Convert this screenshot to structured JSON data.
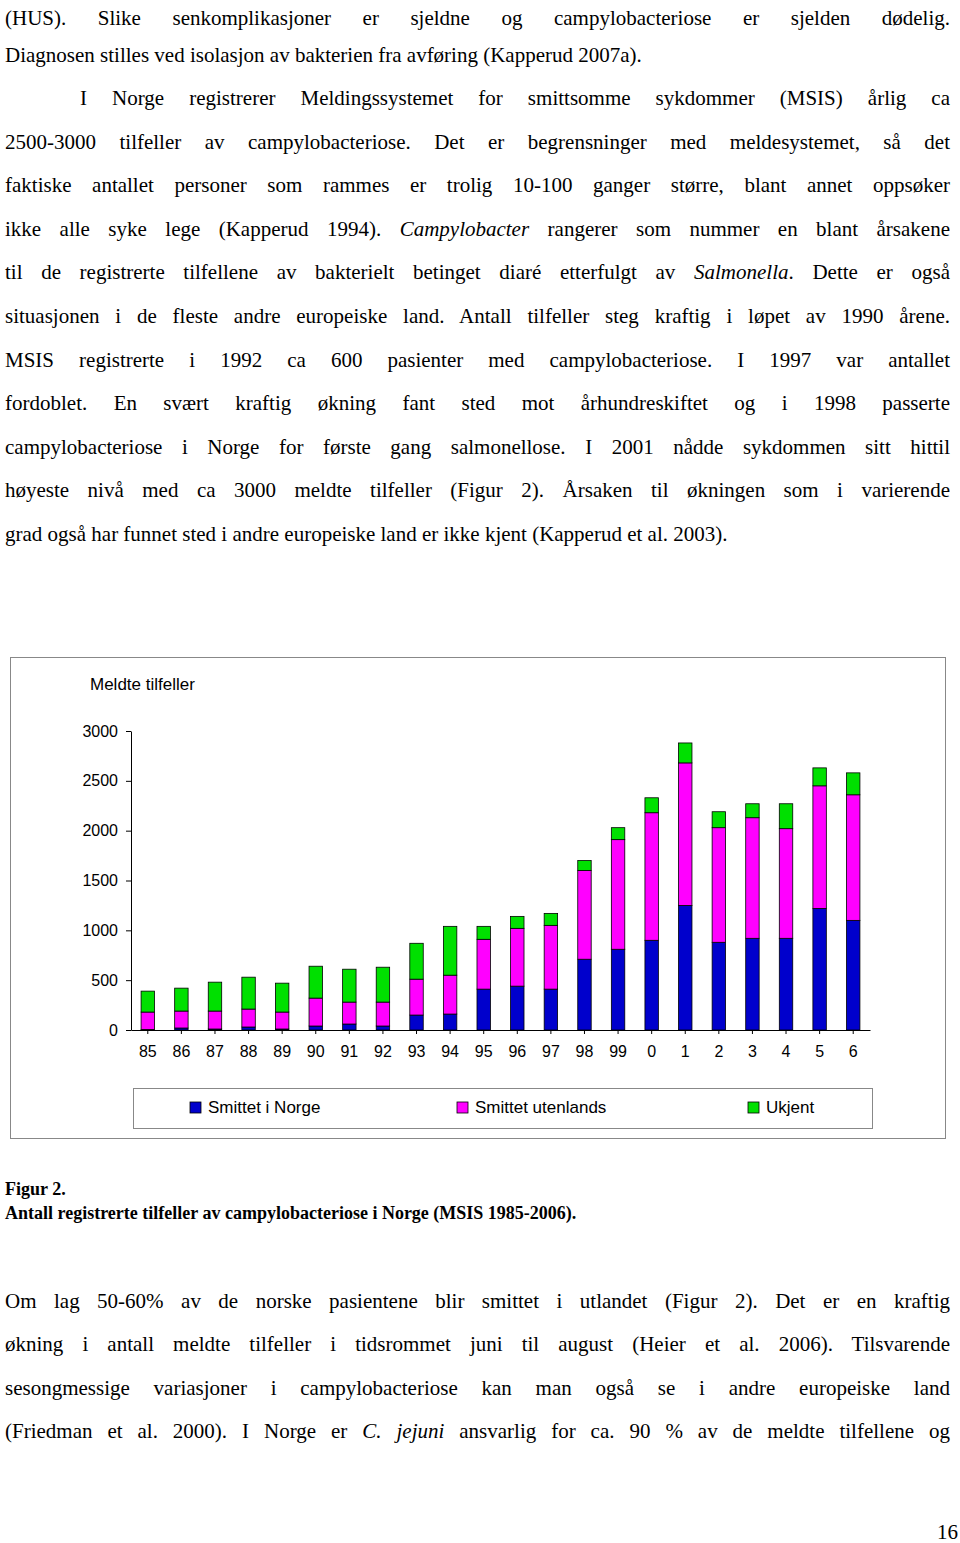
{
  "document": {
    "top": [
      {
        "lines": [
          [
            {
              "text": "(HUS). Slike senkomplikasjoner er sjeldne og campylobacteriose er sjelden dødelig."
            }
          ],
          [
            {
              "text": "Diagnosen stilles ved isolasjon av bakterien fra avføring (Kapperud 2007a)."
            }
          ]
        ]
      },
      {
        "lines": [
          [
            {
              "text": "I Norge registrerer Meldingssystemet for smittsomme sykdommer (MSIS) årlig ca"
            }
          ],
          [
            {
              "text": "2500-3000 tilfeller av campylobacteriose. Det er begrensninger med meldesystemet, så det"
            }
          ],
          [
            {
              "text": "faktiske antallet personer som rammes er trolig 10-100 ganger større, blant annet oppsøker"
            }
          ],
          [
            {
              "text": "ikke alle syke lege (Kapperud 1994). "
            },
            {
              "text": "Campylobacter",
              "italic": true
            },
            {
              "text": " rangerer som nummer en blant årsakene"
            }
          ],
          [
            {
              "text": "til de registrerte tilfellene av bakterielt betinget diaré etterfulgt av "
            },
            {
              "text": "Salmonella",
              "italic": true
            },
            {
              "text": ". Dette er også"
            }
          ],
          [
            {
              "text": "situasjonen i de fleste andre europeiske land. Antall tilfeller steg kraftig i løpet av 1990 årene."
            }
          ],
          [
            {
              "text": "MSIS registrerte i 1992 ca 600 pasienter med campylobacteriose. I 1997 var antallet"
            }
          ],
          [
            {
              "text": "fordoblet. En svært kraftig økning fant sted mot århundreskiftet og i 1998 passerte"
            }
          ],
          [
            {
              "text": "campylobacteriose i Norge for første gang salmonellose. I 2001 nådde sykdommen sitt hittil"
            }
          ],
          [
            {
              "text": "høyeste nivå med ca 3000 meldte tilfeller (Figur 2). Årsaken til økningen som i varierende"
            }
          ],
          [
            {
              "text": "grad også har funnet sted i andre europeiske land er ikke kjent (Kapperud et al. 2003)."
            }
          ]
        ]
      }
    ],
    "caption": {
      "label": "Figur 2.",
      "title": "Antall registrerte tilfeller av campylobacteriose i Norge (MSIS 1985-2006)."
    },
    "bottom": [
      {
        "lines": [
          [
            {
              "text": "Om lag 50-60% av de norske pasientene blir smittet i utlandet (Figur 2). Det er en kraftig"
            }
          ],
          [
            {
              "text": "økning i antall meldte tilfeller i tidsrommet juni til august (Heier et al. 2006). Tilsvarende"
            }
          ],
          [
            {
              "text": "sesongmessige variasjoner i campylobacteriose kan man også se i andre europeiske land"
            }
          ],
          [
            {
              "text": "(Friedman et al. 2000). I Norge er "
            },
            {
              "text": "C. jejuni",
              "italic": true
            },
            {
              "text": " ansvarlig for ca. 90 % av de meldte tilfellene og"
            }
          ]
        ]
      }
    ],
    "page_number": "16"
  },
  "chart_data": {
    "type": "bar",
    "stacked": true,
    "y_label": "Meldte tilfeller",
    "categories": [
      "85",
      "86",
      "87",
      "88",
      "89",
      "90",
      "91",
      "92",
      "93",
      "94",
      "95",
      "96",
      "97",
      "98",
      "99",
      "0",
      "1",
      "2",
      "3",
      "4",
      "5",
      "6"
    ],
    "series": [
      {
        "name": "Smittet i Norge",
        "color": "#0000cc",
        "values": [
          5,
          20,
          10,
          30,
          10,
          40,
          60,
          40,
          150,
          160,
          410,
          440,
          410,
          710,
          810,
          900,
          1250,
          880,
          920,
          920,
          1220,
          1100
        ]
      },
      {
        "name": "Smittet utenlands",
        "color": "#ff00ff",
        "values": [
          175,
          170,
          180,
          180,
          170,
          280,
          220,
          240,
          360,
          390,
          500,
          580,
          640,
          890,
          1100,
          1280,
          1430,
          1150,
          1210,
          1100,
          1230,
          1260
        ]
      },
      {
        "name": "Ukjent",
        "color": "#00e000",
        "values": [
          210,
          230,
          290,
          320,
          290,
          320,
          330,
          350,
          360,
          490,
          130,
          120,
          120,
          100,
          120,
          150,
          200,
          160,
          140,
          250,
          180,
          220
        ]
      }
    ],
    "ylim": [
      0,
      3000
    ],
    "yticks": [
      0,
      500,
      1000,
      1500,
      2000,
      2500,
      3000
    ],
    "legend": "bottom"
  }
}
